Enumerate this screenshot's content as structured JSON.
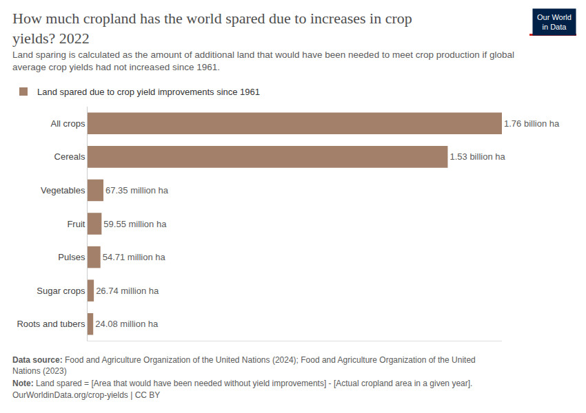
{
  "chart_data": {
    "type": "bar",
    "orientation": "horizontal",
    "title": "How much cropland has the world spared due to increases in crop yields? 2022",
    "subtitle": "Land sparing is calculated as the amount of additional land that would have been needed to meet crop production if global average crop yields had not increased since 1961.",
    "categories": [
      "All crops",
      "Cereals",
      "Vegetables",
      "Fruit",
      "Pulses",
      "Sugar crops",
      "Roots and tubers"
    ],
    "series": [
      {
        "name": "Land spared due to crop yield improvements since 1961",
        "color": "#a2806a",
        "values": [
          1760000000,
          1530000000,
          67350000,
          59550000,
          54710000,
          26740000,
          24080000
        ],
        "value_labels": [
          "1.76 billion ha",
          "1.53 billion ha",
          "67.35 million ha",
          "59.55 million ha",
          "54.71 million ha",
          "26.74 million ha",
          "24.08 million ha"
        ]
      }
    ],
    "data_labels": true,
    "xlim": [
      0,
      1760000000
    ],
    "tick_labels": "y",
    "grid": false,
    "legend": "top-left",
    "source": {
      "label": "Data source:",
      "text": "Food and Agriculture Organization of the United Nations (2024); Food and Agriculture Organization of the United Nations (2023)"
    },
    "note": {
      "label": "Note:",
      "text": "Land spared = [Area that would have been needed without yield improvements] - [Actual cropland area in a given year]."
    },
    "footer": "OurWorldinData.org/crop-yields | CC BY",
    "logo": "Our World in Data"
  }
}
